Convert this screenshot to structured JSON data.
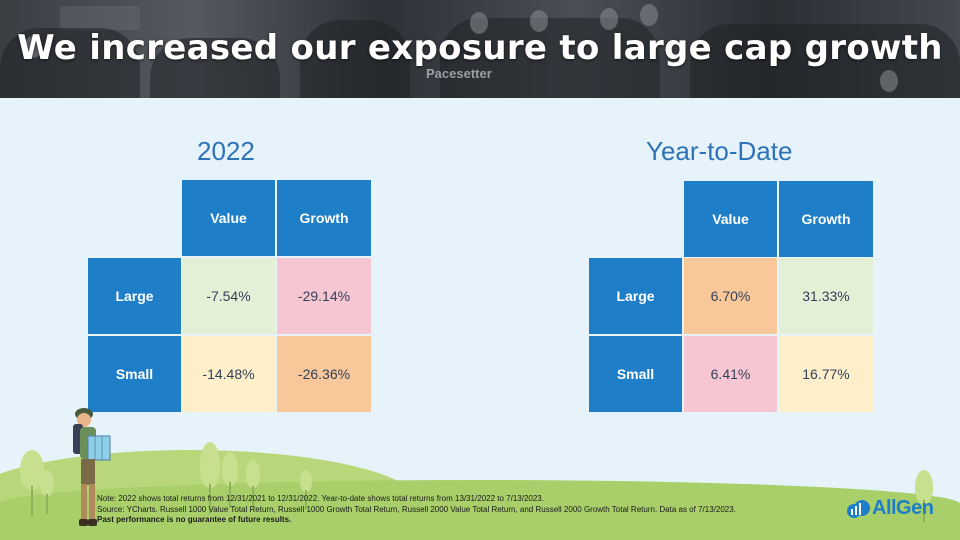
{
  "slide": {
    "title": "We increased our exposure to large cap growth",
    "banner_text": "Pacesetter",
    "brand": "AllGen"
  },
  "matrix_2022": {
    "title": "2022",
    "col_headers": [
      "Value",
      "Growth"
    ],
    "rows": [
      {
        "label": "Large",
        "values": [
          "-7.54%",
          "-29.14%"
        ]
      },
      {
        "label": "Small",
        "values": [
          "-14.48%",
          "-26.36%"
        ]
      }
    ]
  },
  "matrix_ytd": {
    "title": "Year-to-Date",
    "col_headers": [
      "Value",
      "Growth"
    ],
    "rows": [
      {
        "label": "Large",
        "values": [
          "6.70%",
          "31.33%"
        ]
      },
      {
        "label": "Small",
        "values": [
          "6.41%",
          "16.77%"
        ]
      }
    ]
  },
  "notes": {
    "line1": "Note: 2022 shows total returns from 12/31/2021 to 12/31/2022. Year-to-date shows total returns from 13/31/2022 to 7/13/2023.",
    "line2": "Source: YCharts. Russell 1000 Value Total Return, Russell 1000 Growth Total Return, Russell 2000 Value Total Return, and Russell 2000 Growth Total Return. Data as of 7/13/2023.",
    "line3": "Past performance is no guarantee of future results."
  },
  "colors": {
    "header_blue": "#1e7fc8",
    "title_blue": "#2e73b8",
    "green_cell": "#e4f0d6",
    "pink_cell": "#f6c6d2",
    "cream_cell": "#fdefc9",
    "orange_cell": "#f9c89a"
  }
}
